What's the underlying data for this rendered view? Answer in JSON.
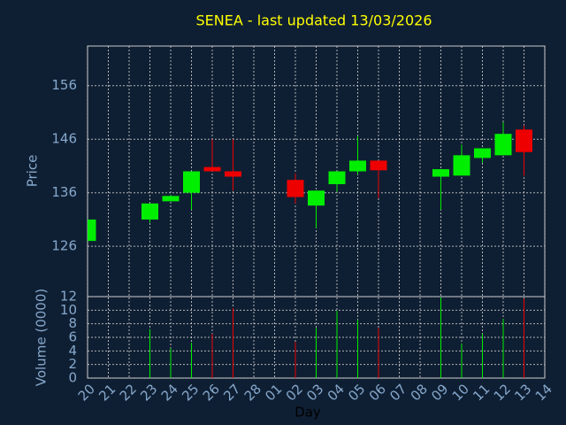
{
  "chart_data": {
    "type": "candlestick",
    "title": "SENEA - last updated 13/03/2026",
    "ylabel": "Price",
    "volume_label": "Volume (0000)",
    "xlabel": "Day",
    "categories": [
      "20",
      "21",
      "22",
      "23",
      "24",
      "25",
      "26",
      "27",
      "28",
      "01",
      "02",
      "03",
      "04",
      "05",
      "06",
      "07",
      "08",
      "09",
      "10",
      "11",
      "12",
      "13",
      "14"
    ],
    "open": [
      127,
      null,
      null,
      131,
      134.4,
      136,
      140.8,
      140,
      null,
      null,
      138.4,
      133.6,
      137.6,
      140,
      142,
      null,
      null,
      139,
      139.2,
      142.5,
      143,
      147.8,
      null
    ],
    "high": [
      131,
      null,
      null,
      134,
      135.6,
      140,
      146,
      146,
      null,
      null,
      139.6,
      136.4,
      140,
      146.6,
      142,
      null,
      null,
      140.4,
      145,
      144.3,
      149.2,
      148.6,
      null
    ],
    "low": [
      127,
      null,
      null,
      130.4,
      134.4,
      132.8,
      140,
      136.4,
      null,
      null,
      134,
      129.4,
      136.2,
      139.4,
      135,
      null,
      null,
      132.8,
      139.2,
      141.6,
      143,
      139.2,
      null
    ],
    "close": [
      131,
      null,
      null,
      134,
      135.4,
      140,
      140,
      139,
      null,
      null,
      135.2,
      136.4,
      140,
      142,
      140.2,
      null,
      null,
      140.4,
      143,
      144.3,
      147,
      143.6,
      null
    ],
    "volume": [
      null,
      null,
      null,
      7.2,
      4.4,
      5.2,
      6.5,
      10.3,
      null,
      null,
      5.3,
      7.4,
      9.9,
      8.6,
      7.4,
      null,
      null,
      11.9,
      5.1,
      6.5,
      8.7,
      11.7,
      null
    ],
    "up_color": "#00ee00",
    "down_color": "#ee0000",
    "ylim": [
      116.6,
      163.4
    ],
    "yticks": [
      126,
      136,
      146,
      156
    ],
    "volume_ylim": [
      0,
      12
    ],
    "volume_yticks": [
      0,
      2,
      4,
      6,
      8,
      10,
      12
    ],
    "grid": true
  }
}
